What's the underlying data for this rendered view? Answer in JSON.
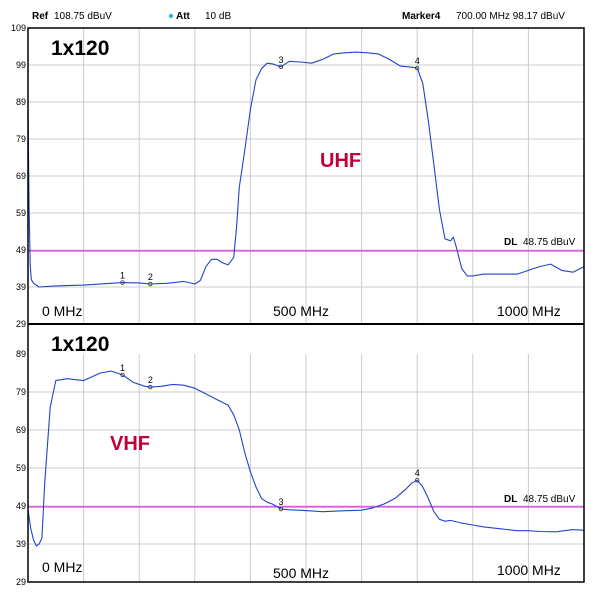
{
  "header": {
    "ref_label": "Ref",
    "ref_value": "108.75 dBuV",
    "att_label": "Att",
    "att_value": "10 dB",
    "marker_label": "Marker4",
    "marker_value": "700.00 MHz   98.17 dBuV"
  },
  "colors": {
    "trace": "#2244cc",
    "display_line": "#e020e0",
    "band_label": "#c0003a",
    "grid": "#cccccc",
    "att_dot": "#33b5e5"
  },
  "chart_data": [
    {
      "type": "line",
      "panel_label": "1x120",
      "band_label": "UHF",
      "xunit": "MHz",
      "xlim": [
        0,
        1000
      ],
      "ylim": [
        29,
        109
      ],
      "yticks": [
        "109",
        "99",
        "89",
        "79",
        "69",
        "59",
        "49",
        "39",
        "29"
      ],
      "x_tick_labels": [
        "0 MHz",
        "500 MHz",
        "1000 MHz"
      ],
      "display_line": {
        "label": "DL",
        "value_label": "48.75 dBuV",
        "value": 48.75
      },
      "markers": [
        {
          "label": "1",
          "x": 170,
          "y": 40.2
        },
        {
          "label": "2",
          "x": 220,
          "y": 39.8
        },
        {
          "label": "3",
          "x": 455,
          "y": 98.5
        },
        {
          "label": "4",
          "x": 700,
          "y": 98.17
        }
      ],
      "series": [
        {
          "x": [
            0,
            2,
            4,
            6,
            10,
            20,
            50,
            100,
            150,
            170,
            200,
            220,
            250,
            280,
            300,
            310,
            320,
            330,
            340,
            350,
            360,
            370,
            375,
            380,
            390,
            400,
            410,
            420,
            430,
            440,
            455,
            470,
            490,
            510,
            530,
            550,
            570,
            590,
            610,
            630,
            650,
            670,
            690,
            700,
            710,
            720,
            730,
            740,
            750,
            760,
            765,
            770,
            780,
            790,
            800,
            820,
            850,
            880,
            900,
            920,
            940,
            960,
            980,
            1000
          ],
          "y": [
            88,
            60,
            45,
            41,
            40,
            39,
            39.3,
            39.5,
            40,
            40.2,
            40.1,
            39.8,
            40,
            40.5,
            39.8,
            40.8,
            44.5,
            46.5,
            46.5,
            45.5,
            45,
            47,
            55,
            66,
            76,
            87,
            95,
            98,
            99.5,
            99.3,
            98.5,
            100,
            99.8,
            99.5,
            100.5,
            102,
            102.3,
            102.5,
            102.3,
            102,
            100.5,
            98.7,
            98.4,
            98.17,
            94,
            84,
            72,
            60,
            52,
            51.5,
            52.5,
            50,
            44,
            42,
            42,
            42.5,
            42.5,
            42.5,
            43.5,
            44.5,
            45.2,
            43.5,
            43,
            44.5
          ]
        }
      ]
    },
    {
      "type": "line",
      "panel_label": "1x120",
      "band_label": "VHF",
      "xunit": "MHz",
      "xlim": [
        0,
        1000
      ],
      "ylim": [
        29,
        89
      ],
      "yticks": [
        "89",
        "79",
        "69",
        "59",
        "49",
        "39",
        "29"
      ],
      "x_tick_labels": [
        "0 MHz",
        "500 MHz",
        "1000 MHz"
      ],
      "display_line": {
        "label": "DL",
        "value_label": "48.75 dBuV",
        "value": 48.75
      },
      "markers": [
        {
          "label": "1",
          "x": 170,
          "y": 83.5
        },
        {
          "label": "2",
          "x": 220,
          "y": 80.3
        },
        {
          "label": "3",
          "x": 455,
          "y": 48.2
        },
        {
          "label": "4",
          "x": 700,
          "y": 55.8
        }
      ],
      "series": [
        {
          "x": [
            0,
            5,
            10,
            15,
            20,
            25,
            30,
            40,
            50,
            70,
            100,
            130,
            150,
            170,
            190,
            210,
            220,
            240,
            260,
            280,
            300,
            320,
            340,
            360,
            370,
            380,
            390,
            400,
            410,
            420,
            430,
            440,
            455,
            470,
            500,
            530,
            560,
            600,
            620,
            640,
            660,
            680,
            690,
            700,
            710,
            720,
            730,
            740,
            750,
            760,
            780,
            800,
            820,
            850,
            880,
            900,
            920,
            950,
            980,
            1000
          ],
          "y": [
            48,
            43,
            40,
            38.5,
            39,
            40.5,
            55,
            75,
            82,
            82.5,
            82,
            84,
            84.5,
            83.5,
            81.5,
            80.5,
            80.3,
            80.5,
            81,
            80.8,
            80,
            78.5,
            77,
            75.5,
            73,
            69,
            63,
            58,
            54,
            51,
            50,
            49.5,
            48.2,
            48,
            47.8,
            47.5,
            47.7,
            47.9,
            48.5,
            49.5,
            51,
            53.5,
            55,
            55.8,
            54,
            51,
            47.5,
            45.5,
            45,
            45.2,
            44.5,
            44,
            43.5,
            43,
            42.5,
            42.5,
            42.3,
            42.2,
            42.8,
            42.6
          ]
        }
      ]
    }
  ]
}
